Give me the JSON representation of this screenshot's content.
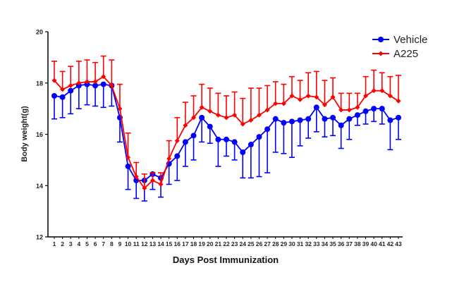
{
  "chart_data": {
    "type": "line",
    "xlabel": "Days Post Immunization",
    "ylabel": "Body weight(g)",
    "ylim": [
      12,
      20
    ],
    "yticks": [
      12,
      14,
      16,
      18,
      20
    ],
    "x": [
      1,
      2,
      3,
      4,
      5,
      6,
      7,
      8,
      9,
      10,
      11,
      12,
      13,
      14,
      15,
      16,
      17,
      18,
      19,
      20,
      21,
      22,
      23,
      24,
      25,
      26,
      27,
      28,
      29,
      30,
      31,
      32,
      33,
      34,
      35,
      36,
      37,
      38,
      39,
      40,
      41,
      42,
      43
    ],
    "legend_position": "top-right",
    "series": [
      {
        "name": "Vehicle",
        "color": "#0000ff",
        "error_direction": "down",
        "values": [
          17.5,
          17.45,
          17.7,
          17.9,
          17.95,
          17.9,
          17.95,
          17.9,
          16.65,
          14.75,
          14.2,
          14.2,
          14.45,
          14.3,
          14.85,
          15.15,
          15.7,
          15.95,
          16.65,
          16.3,
          15.8,
          15.8,
          15.7,
          15.3,
          15.6,
          15.9,
          16.2,
          16.6,
          16.45,
          16.5,
          16.55,
          16.6,
          17.05,
          16.6,
          16.65,
          16.35,
          16.6,
          16.75,
          16.9,
          17.0,
          17.0,
          16.55,
          16.65
        ],
        "errors": [
          0.9,
          0.8,
          0.9,
          0.9,
          0.8,
          0.8,
          0.9,
          0.8,
          0.95,
          0.9,
          0.7,
          0.8,
          0.6,
          0.75,
          0.8,
          0.95,
          0.95,
          0.95,
          0.95,
          0.65,
          1.05,
          0.65,
          0.7,
          1.0,
          1.3,
          1.55,
          1.7,
          1.3,
          1.2,
          1.4,
          1.0,
          0.75,
          0.95,
          0.7,
          0.7,
          0.9,
          0.8,
          0.4,
          0.5,
          0.5,
          0.6,
          1.15,
          0.85
        ]
      },
      {
        "name": "A225",
        "color": "#ff0000",
        "error_direction": "up",
        "values": [
          18.1,
          17.75,
          17.9,
          18.0,
          18.05,
          18.05,
          18.25,
          17.9,
          17.0,
          15.1,
          14.35,
          13.9,
          14.2,
          14.05,
          15.05,
          15.75,
          16.35,
          16.65,
          17.05,
          16.9,
          16.75,
          16.65,
          16.75,
          16.4,
          16.55,
          16.75,
          16.95,
          17.2,
          17.2,
          17.5,
          17.35,
          17.5,
          17.45,
          17.15,
          17.45,
          16.95,
          16.95,
          17.05,
          17.5,
          17.7,
          17.7,
          17.5,
          17.3
        ],
        "errors": [
          0.75,
          0.7,
          0.75,
          0.85,
          0.85,
          0.75,
          0.8,
          1.0,
          0.95,
          0.95,
          0.55,
          0.55,
          0.3,
          0.45,
          0.7,
          0.9,
          0.9,
          0.85,
          0.9,
          0.9,
          0.85,
          0.85,
          0.9,
          1.0,
          1.25,
          1.05,
          0.95,
          0.85,
          0.75,
          0.75,
          0.75,
          0.9,
          1.0,
          0.95,
          0.75,
          0.65,
          0.65,
          0.55,
          0.75,
          0.8,
          0.7,
          0.75,
          1.0
        ]
      }
    ]
  }
}
